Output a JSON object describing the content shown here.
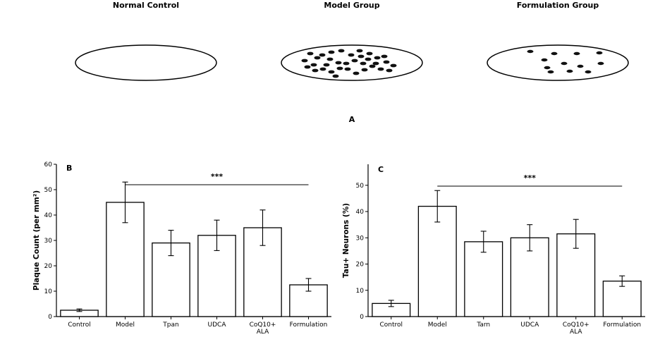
{
  "panel_a": {
    "label": "A",
    "titles": [
      "Normal Control",
      "Model Group",
      "Formulation Group"
    ]
  },
  "chart_data": [
    {
      "type": "bar",
      "panel": "B",
      "ylabel": "Plaque Count (per mm²)",
      "ylim": [
        0,
        60
      ],
      "yticks": [
        "0",
        "10",
        "20",
        "30",
        "40",
        "50",
        "60"
      ],
      "categories": [
        "Control",
        "Model",
        "Tpan",
        "UDCA",
        "CoQ10+\nALA",
        "Formulation"
      ],
      "values": [
        2.5,
        45,
        29,
        32,
        35,
        12.5
      ],
      "errors": [
        0.5,
        8,
        5,
        6,
        7,
        2.5
      ],
      "significance": "***",
      "grid": false
    },
    {
      "type": "bar",
      "panel": "C",
      "ylabel": "Tau+ Neurons (%)",
      "ylim": [
        0,
        58
      ],
      "yticks": [
        "0",
        "10",
        "20",
        "30",
        "40",
        "50"
      ],
      "categories": [
        "Control",
        "Model",
        "Tarn",
        "UDCA",
        "CoQ10+\nALA",
        "Formulation"
      ],
      "values": [
        5,
        42,
        28.5,
        30,
        31.5,
        13.5
      ],
      "errors": [
        1.2,
        6,
        4,
        5,
        5.5,
        2
      ],
      "significance": "***",
      "grid": false
    }
  ]
}
